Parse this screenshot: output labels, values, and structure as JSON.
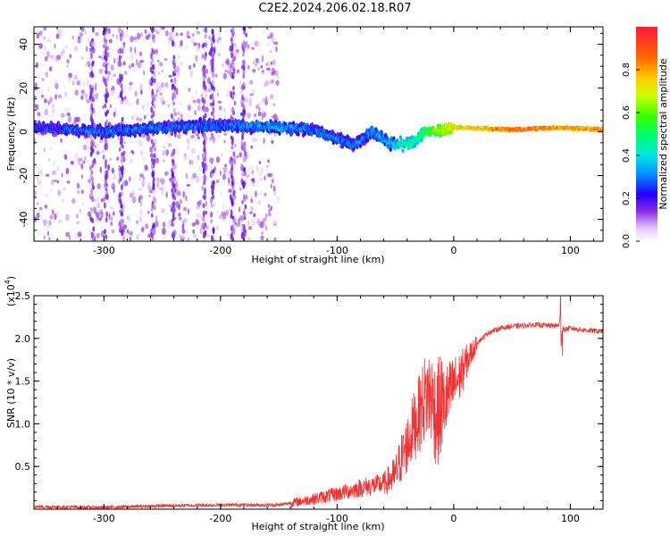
{
  "title": "C2E2.2024.206.02.18.R07",
  "colorbar": {
    "label": "Normalized spectral amplitude",
    "range": [
      0,
      1
    ],
    "ticks": [
      "0.0",
      "0.2",
      "0.4",
      "0.6",
      "0.8"
    ],
    "tick_values": [
      0.0,
      0.2,
      0.4,
      0.6,
      0.8
    ]
  },
  "chart_data": [
    {
      "type": "heatmap",
      "title": "C2E2.2024.206.02.18.R07",
      "xlabel": "Height of straight line (km)",
      "ylabel": "Frequency (Hz)",
      "xlim": [
        -360,
        128
      ],
      "ylim": [
        -50,
        48
      ],
      "xticks": [
        -300,
        -200,
        -100,
        0,
        100
      ],
      "xtick_labels": [
        "-300",
        "-200",
        "-100",
        "0",
        "100"
      ],
      "yticks": [
        -40,
        -20,
        0,
        20,
        40
      ],
      "ytick_labels": [
        "-40",
        "-20",
        "0",
        "20",
        "40"
      ],
      "ridge_frequency_hz": [
        [
          -360,
          2
        ],
        [
          -300,
          0
        ],
        [
          -250,
          2
        ],
        [
          -200,
          3
        ],
        [
          -150,
          2
        ],
        [
          -120,
          1
        ],
        [
          -100,
          -3
        ],
        [
          -85,
          -6
        ],
        [
          -70,
          0
        ],
        [
          -50,
          -6
        ],
        [
          -35,
          -5
        ],
        [
          -25,
          0
        ],
        [
          -10,
          1
        ],
        [
          0,
          2
        ],
        [
          50,
          1
        ],
        [
          90,
          2
        ],
        [
          128,
          1
        ]
      ],
      "ridge_amplitude": [
        [
          -360,
          0.25
        ],
        [
          -300,
          0.3
        ],
        [
          -250,
          0.3
        ],
        [
          -200,
          0.3
        ],
        [
          -150,
          0.35
        ],
        [
          -100,
          0.3
        ],
        [
          -60,
          0.35
        ],
        [
          -30,
          0.5
        ],
        [
          0,
          0.75
        ],
        [
          50,
          0.9
        ],
        [
          90,
          0.85
        ],
        [
          128,
          0.85
        ]
      ]
    },
    {
      "type": "line",
      "xlabel": "Height of straight line (km)",
      "ylabel": "SNR (10 * v/v)",
      "y_scale_label": "(x10",
      "y_scale_exponent": "4",
      "xlim": [
        -360,
        128
      ],
      "ylim": [
        0,
        2.5
      ],
      "xticks": [
        -300,
        -200,
        -100,
        0,
        100
      ],
      "xtick_labels": [
        "-300",
        "-200",
        "-100",
        "0",
        "100"
      ],
      "yticks": [
        0.5,
        1.0,
        1.5,
        2.0,
        2.5
      ],
      "ytick_labels": [
        "0.5",
        "1.0",
        "1.5",
        "2.0",
        "2.5"
      ],
      "series": [
        {
          "name": "SNR",
          "color": "#ee3333",
          "x": [
            -360,
            -300,
            -250,
            -200,
            -150,
            -120,
            -100,
            -80,
            -60,
            -50,
            -45,
            -40,
            -35,
            -30,
            -25,
            -20,
            -15,
            -10,
            -5,
            0,
            5,
            10,
            20,
            30,
            40,
            50,
            60,
            70,
            80,
            90,
            92,
            94,
            100,
            110,
            128
          ],
          "y": [
            0.03,
            0.02,
            0.04,
            0.05,
            0.05,
            0.12,
            0.18,
            0.25,
            0.3,
            0.4,
            0.6,
            0.75,
            0.95,
            1.1,
            1.3,
            1.35,
            1.1,
            1.2,
            1.3,
            1.45,
            1.55,
            1.7,
            1.95,
            2.07,
            2.12,
            2.14,
            2.15,
            2.16,
            2.15,
            2.15,
            2.3,
            2.1,
            2.12,
            2.1,
            2.08
          ]
        }
      ]
    }
  ]
}
